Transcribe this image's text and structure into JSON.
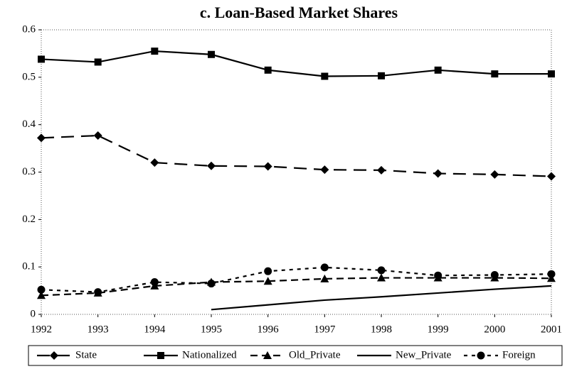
{
  "chart_data": {
    "type": "line",
    "title": "c. Loan-Based Market Shares",
    "categories": [
      "1992",
      "1993",
      "1994",
      "1995",
      "1996",
      "1997",
      "1998",
      "1999",
      "2000",
      "2001"
    ],
    "series": [
      {
        "name": "State",
        "color": "#000000",
        "marker": "diamond",
        "dash": "long-dash",
        "values": [
          0.372,
          0.377,
          0.32,
          0.313,
          0.312,
          0.305,
          0.304,
          0.297,
          0.295,
          0.291
        ]
      },
      {
        "name": "Nationalized",
        "color": "#000000",
        "marker": "square",
        "dash": "solid",
        "values": [
          0.538,
          0.532,
          0.555,
          0.548,
          0.515,
          0.502,
          0.503,
          0.515,
          0.507,
          0.507
        ]
      },
      {
        "name": "Old_Private",
        "color": "#000000",
        "marker": "triangle",
        "dash": "dash",
        "values": [
          0.04,
          0.045,
          0.06,
          0.068,
          0.07,
          0.075,
          0.077,
          0.077,
          0.077,
          0.076
        ]
      },
      {
        "name": "New_Private",
        "color": "#000000",
        "marker": "none",
        "dash": "solid",
        "values": [
          null,
          null,
          null,
          0.01,
          0.02,
          0.03,
          0.037,
          0.045,
          0.053,
          0.06
        ]
      },
      {
        "name": "Foreign",
        "color": "#000000",
        "marker": "circle",
        "dash": "short-dash",
        "values": [
          0.052,
          0.047,
          0.068,
          0.065,
          0.091,
          0.099,
          0.093,
          0.082,
          0.083,
          0.085
        ]
      }
    ],
    "ylim": [
      0,
      0.6
    ],
    "yticks": [
      0,
      0.1,
      0.2,
      0.3,
      0.4,
      0.5,
      0.6
    ],
    "grid": false,
    "legend": "bottom"
  }
}
